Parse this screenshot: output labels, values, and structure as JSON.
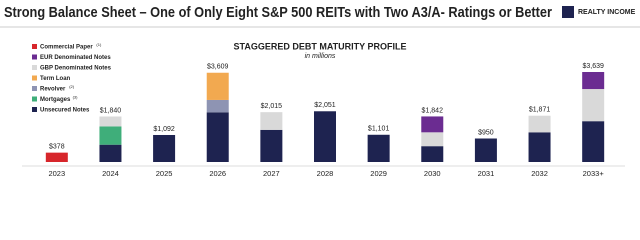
{
  "chart_data": {
    "type": "stacked_bar",
    "title": "Strong Balance Sheet – One of Only Eight S&P 500 REITs with Two A3/A- Ratings or Better",
    "logo": "REALTY INCOME",
    "subtitle": "STAGGERED DEBT MATURITY PROFILE",
    "unit_note": "in millions",
    "categories": [
      "2023",
      "2024",
      "2025",
      "2026",
      "2027",
      "2028",
      "2029",
      "2030",
      "2031",
      "2032",
      "2033+"
    ],
    "series": [
      {
        "name": "Unsecured Notes",
        "color": "#1e2350",
        "values": [
          null,
          700,
          1092,
          2009,
          1300,
          2051,
          1101,
          640,
          950,
          1200,
          1650
        ]
      },
      {
        "name": "Mortgages",
        "note": "(3)",
        "color": "#3fae7a",
        "values": [
          null,
          740,
          null,
          null,
          null,
          null,
          null,
          null,
          null,
          null,
          null
        ]
      },
      {
        "name": "Revolver",
        "note": "(2)",
        "color": "#8e94b3",
        "values": [
          null,
          null,
          null,
          500,
          null,
          null,
          null,
          null,
          null,
          null,
          null
        ]
      },
      {
        "name": "Term Loan",
        "color": "#f2a950",
        "values": [
          null,
          null,
          null,
          1100,
          null,
          null,
          null,
          null,
          null,
          null,
          null
        ]
      },
      {
        "name": "GBP Denominated Notes",
        "color": "#d9d9d9",
        "values": [
          null,
          400,
          null,
          null,
          715,
          null,
          null,
          560,
          null,
          671,
          1300
        ]
      },
      {
        "name": "EUR Denominated Notes",
        "color": "#6b2c91",
        "values": [
          null,
          null,
          null,
          null,
          null,
          null,
          null,
          642,
          null,
          null,
          689
        ]
      },
      {
        "name": "Commercial Paper",
        "note": "(1)",
        "color": "#d7262b",
        "values": [
          378,
          null,
          null,
          null,
          null,
          null,
          null,
          null,
          null,
          null,
          null
        ]
      }
    ],
    "totals": [
      378,
      1840,
      1092,
      3609,
      2015,
      2051,
      1101,
      1842,
      950,
      1871,
      3639
    ],
    "total_labels": [
      "$378",
      "$1,840",
      "$1,092",
      "$3,609",
      "$2,015",
      "$2,051",
      "$1,101",
      "$1,842",
      "$950",
      "$1,871",
      "$3,639"
    ]
  }
}
